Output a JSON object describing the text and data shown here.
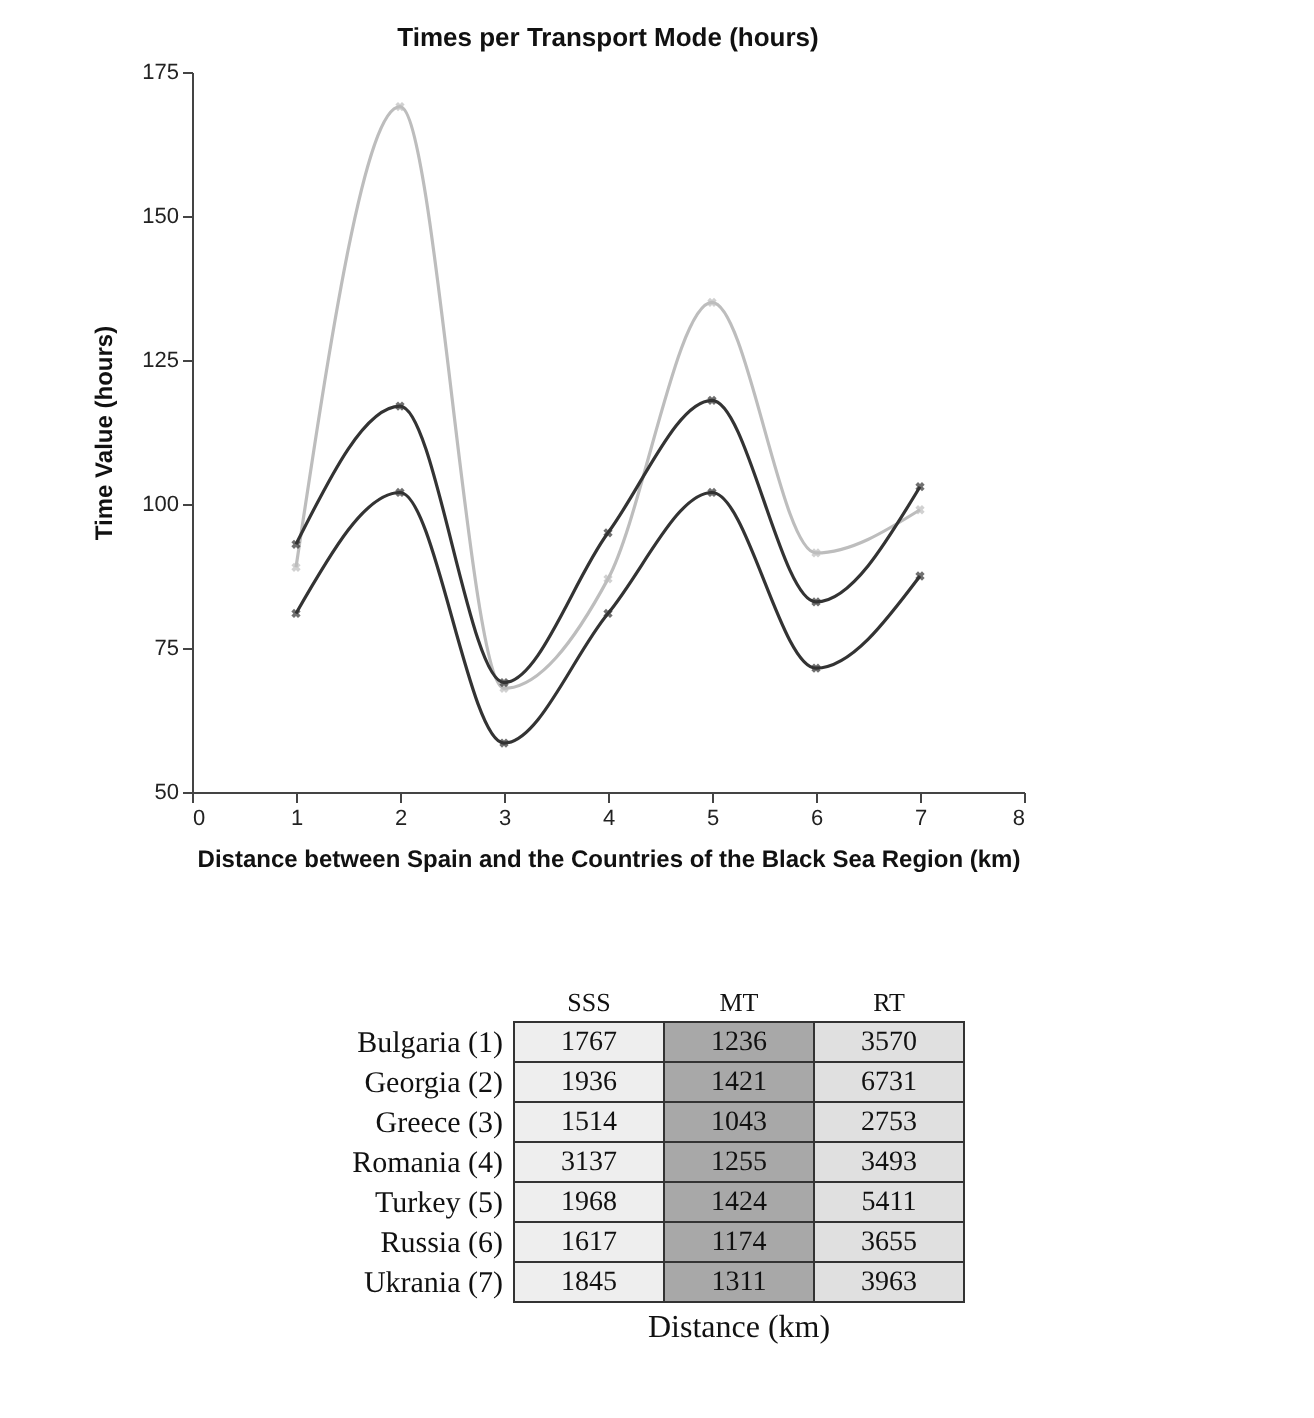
{
  "chart_data": [
    {
      "type": "line",
      "title": "Times per Transport Mode (hours)",
      "xlabel": "Distance between Spain and the Countries of the Black Sea Region (km)",
      "ylabel": "Time Value (hours)",
      "x": [
        1,
        2,
        3,
        4,
        5,
        6,
        7
      ],
      "series": [
        {
          "color": "#bdbdbd",
          "values": [
            89,
            169,
            68,
            87,
            135,
            91.5,
            99
          ]
        },
        {
          "color": "#333333",
          "values": [
            93,
            117,
            69,
            95,
            118,
            83,
            103
          ]
        },
        {
          "color": "#333333",
          "values": [
            81,
            102,
            58.5,
            81,
            102,
            71.5,
            87.5
          ]
        }
      ],
      "xlim": [
        0,
        8
      ],
      "xticks": [
        0,
        1,
        2,
        3,
        4,
        5,
        6,
        7,
        8
      ],
      "ylim": [
        50,
        175
      ],
      "yticks": [
        50,
        75,
        100,
        125,
        150,
        175
      ],
      "grid": false,
      "legend": false,
      "marker": "cross",
      "line_style": "solid"
    },
    {
      "type": "heatmap",
      "data_labels": true,
      "xlabel": "Distance (km)",
      "categories": [
        "SSS",
        "MT",
        "RT"
      ],
      "y_categories": [
        "Bulgaria (1)",
        "Georgia (2)",
        "Greece (3)",
        "Romania (4)",
        "Turkey (5)",
        "Russia (6)",
        "Ukrania (7)"
      ],
      "colors": [
        "#eeeeee",
        "#a8a8a8",
        "#e0e0e0"
      ],
      "cells": [
        [
          1767,
          1236,
          3570
        ],
        [
          1936,
          1421,
          6731
        ],
        [
          1514,
          1043,
          2753
        ],
        [
          3137,
          1255,
          3493
        ],
        [
          1968,
          1424,
          5411
        ],
        [
          1617,
          1174,
          3655
        ],
        [
          1845,
          1311,
          3963
        ]
      ]
    }
  ]
}
